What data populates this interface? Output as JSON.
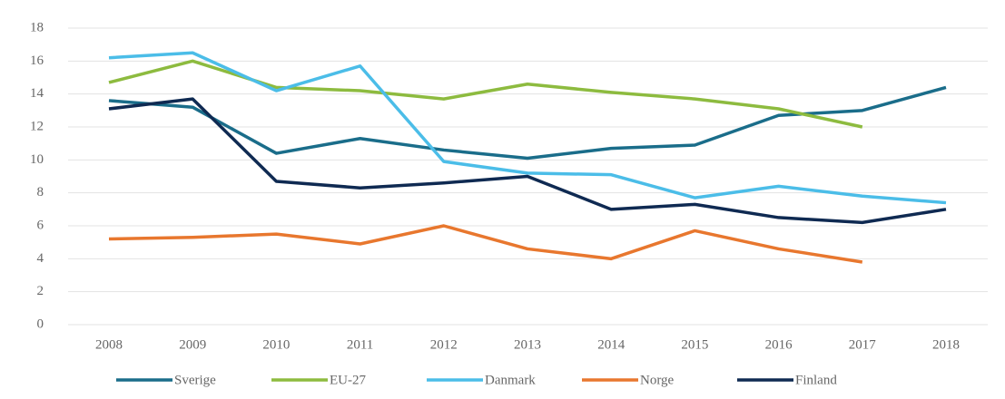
{
  "chart_data": {
    "type": "line",
    "categories": [
      "2008",
      "2009",
      "2010",
      "2011",
      "2012",
      "2013",
      "2014",
      "2015",
      "2016",
      "2017",
      "2018"
    ],
    "series": [
      {
        "name": "Sverige",
        "color": "#1a6d8a",
        "values": [
          13.6,
          13.2,
          10.4,
          11.3,
          10.6,
          10.1,
          10.7,
          10.9,
          12.7,
          13.0,
          14.4
        ]
      },
      {
        "name": "EU-27",
        "color": "#8dbb3f",
        "values": [
          14.7,
          16.0,
          14.4,
          14.2,
          13.7,
          14.6,
          14.1,
          13.7,
          13.1,
          12.0,
          null
        ]
      },
      {
        "name": "Danmark",
        "color": "#4bbde8",
        "values": [
          16.2,
          16.5,
          14.2,
          15.7,
          9.9,
          9.2,
          9.1,
          7.7,
          8.4,
          7.8,
          7.4
        ]
      },
      {
        "name": "Norge",
        "color": "#e8772e",
        "values": [
          5.2,
          5.3,
          5.5,
          4.9,
          6.0,
          4.6,
          4.0,
          5.7,
          4.6,
          3.8,
          null
        ]
      },
      {
        "name": "Finland",
        "color": "#0f2a52",
        "values": [
          13.1,
          13.7,
          8.7,
          8.3,
          8.6,
          9.0,
          7.0,
          7.3,
          6.5,
          6.2,
          7.0
        ]
      }
    ],
    "ylim": [
      0,
      18
    ],
    "yticks": [
      0,
      2,
      4,
      6,
      8,
      10,
      12,
      14,
      16,
      18
    ],
    "grid": true,
    "legend": "bottom"
  }
}
